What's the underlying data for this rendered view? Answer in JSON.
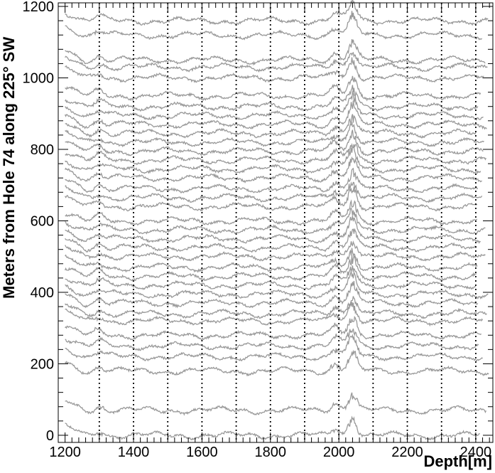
{
  "chart_data": {
    "type": "line",
    "title": "",
    "xlabel": "Depth[m]",
    "ylabel": "Meters from Hole 74 along 225° SW",
    "xlim": [
      1180,
      2450
    ],
    "ylim": [
      -20,
      1210
    ],
    "xticks": [
      1200,
      1400,
      1600,
      1800,
      2000,
      2200,
      2400
    ],
    "yticks": [
      0,
      200,
      400,
      600,
      800,
      1000,
      1200
    ],
    "vertical_dotted_lines": [
      1300,
      1400,
      1500,
      1600,
      1700,
      1800,
      1900,
      2000,
      2100,
      2200,
      2300,
      2400
    ],
    "grid": false,
    "series_color": "#999999",
    "trace_offsets": [
      0,
      70,
      180,
      220,
      250,
      280,
      320,
      340,
      370,
      395,
      420,
      445,
      470,
      500,
      525,
      550,
      575,
      600,
      640,
      665,
      690,
      720,
      745,
      770,
      795,
      820,
      845,
      870,
      895,
      920,
      950,
      1000,
      1030,
      1050,
      1120,
      1160
    ],
    "trace_depth_range": [
      1200,
      2440
    ],
    "trace_features": [
      {
        "depth": 1300,
        "amplitude": 15
      },
      {
        "depth": 1990,
        "amplitude": 25
      },
      {
        "depth": 2040,
        "amplitude": 60
      }
    ]
  }
}
